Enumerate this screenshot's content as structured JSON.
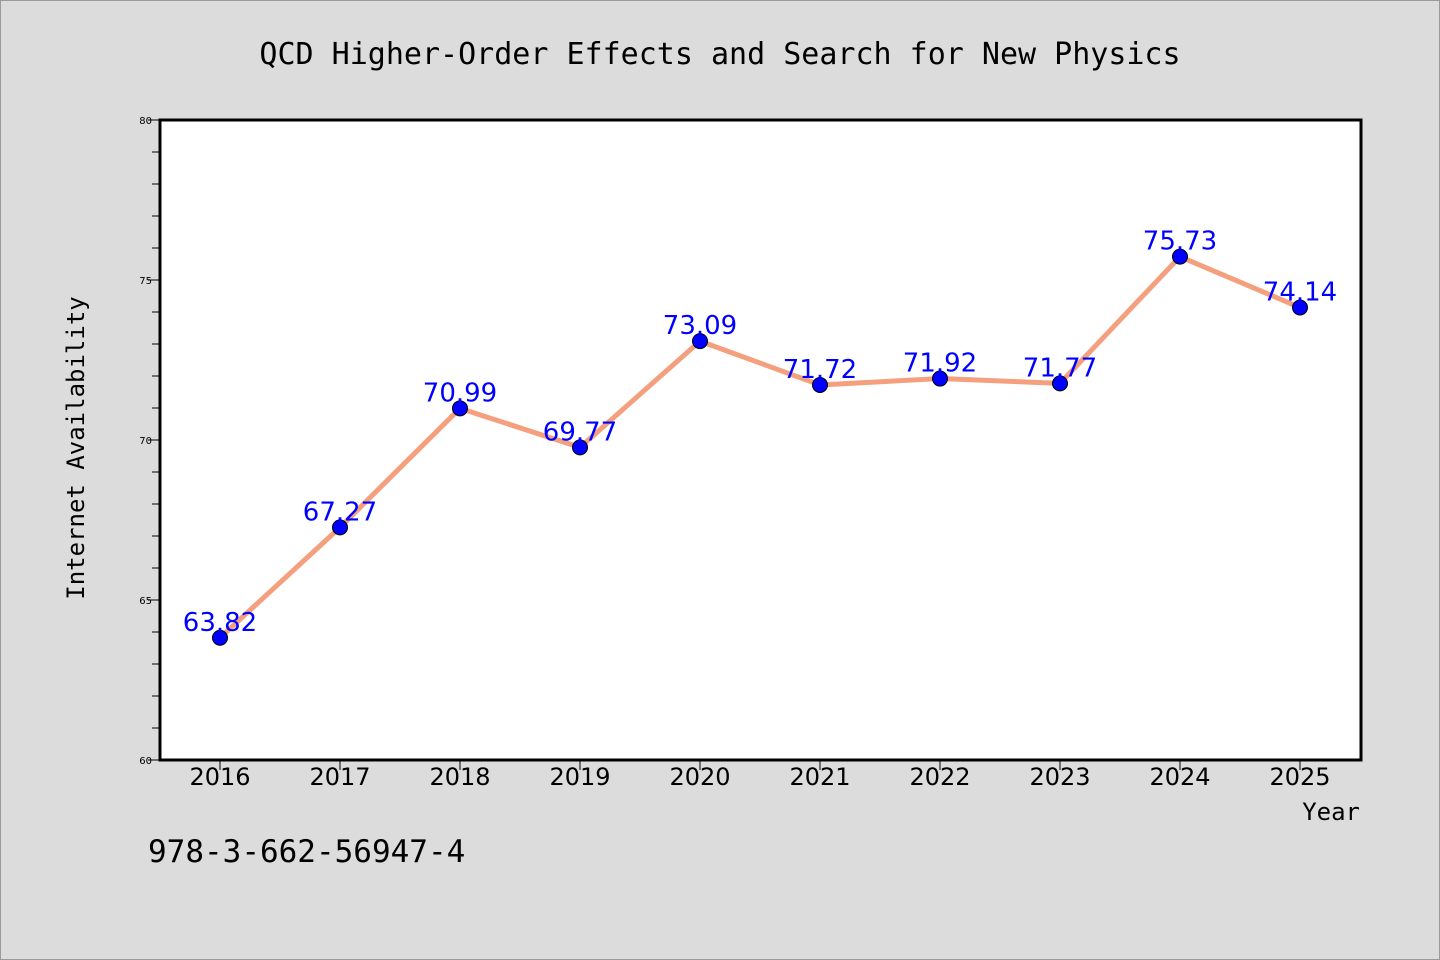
{
  "chart_data": {
    "type": "line",
    "title": "QCD Higher-Order Effects and Search for New Physics",
    "xlabel": "Year",
    "ylabel": "Internet Availability",
    "categories": [
      "2016",
      "2017",
      "2018",
      "2019",
      "2020",
      "2021",
      "2022",
      "2023",
      "2024",
      "2025"
    ],
    "series": [
      {
        "values": [
          63.82,
          67.27,
          70.99,
          69.77,
          73.09,
          71.72,
          71.92,
          71.77,
          75.73,
          74.14
        ],
        "data_labels": [
          "63.82",
          "67.27",
          "70.99",
          "69.77",
          "73.09",
          "71.72",
          "71.92",
          "71.77",
          "75.73",
          "74.14"
        ],
        "line_color": "#f4a07f",
        "marker_color": "#0000ff",
        "label_color": "#0000ff"
      }
    ],
    "ylim": [
      60,
      80
    ],
    "yticks": [
      60,
      65,
      70,
      75,
      80
    ],
    "grid": false,
    "legend": "none"
  },
  "colors": {
    "background": "#dcdcdc",
    "plot_area": "#ffffff",
    "axes": "#000000"
  },
  "footer": {
    "isbn": "978-3-662-56947-4"
  }
}
